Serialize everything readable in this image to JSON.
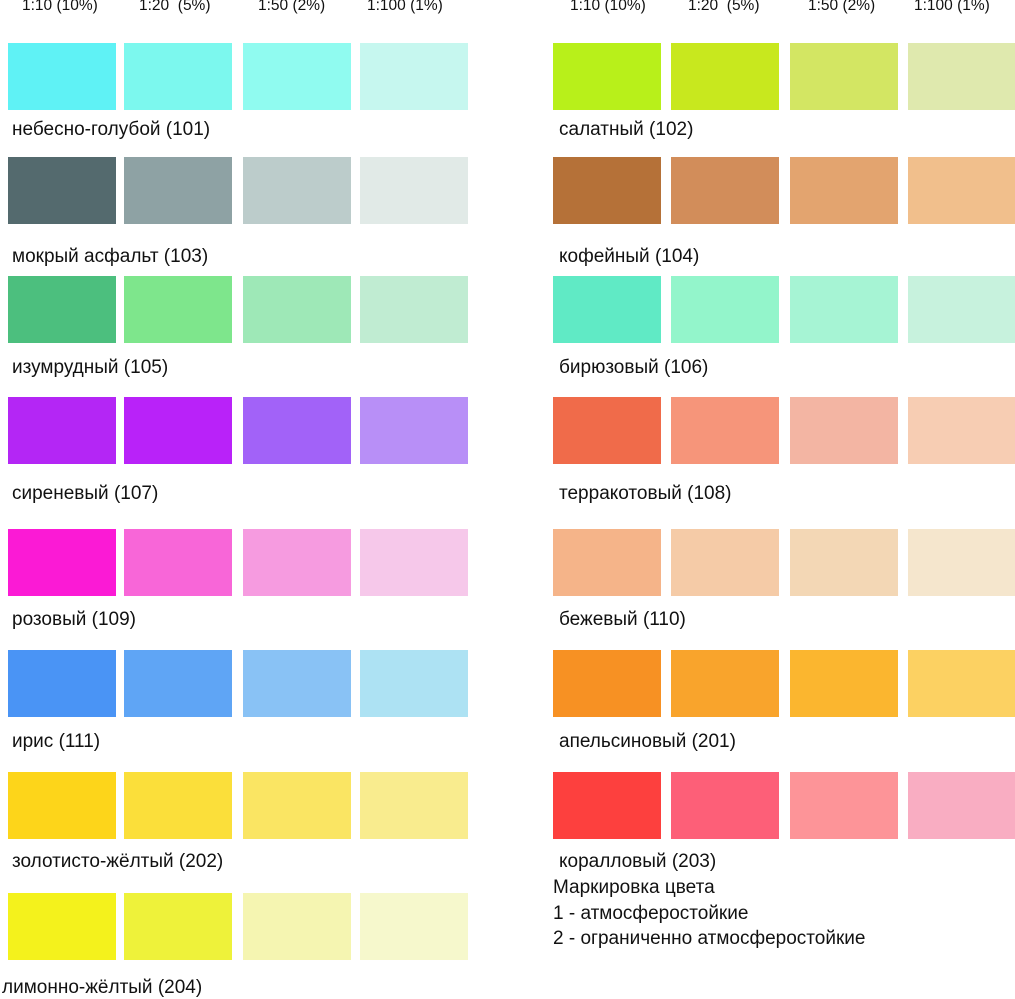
{
  "headers": [
    "1:10 (10%)",
    "1:20  (5%)",
    "1:50 (2%)",
    "1:100 (1%)"
  ],
  "left": [
    {
      "label": "небесно-голубой (101)",
      "colors": [
        "#5ff2f5",
        "#7cf8ee",
        "#90fbf0",
        "#c6f7ef"
      ]
    },
    {
      "label": "мокрый асфальт (103)",
      "colors": [
        "#546a6e",
        "#8ea2a4",
        "#bccccb",
        "#e1eae7"
      ]
    },
    {
      "label": "изумрудный (105)",
      "colors": [
        "#4cbf7e",
        "#7ee68c",
        "#9ee8b7",
        "#c0ecd2"
      ]
    },
    {
      "label": "сиреневый (107)",
      "colors": [
        "#b426f5",
        "#b922f9",
        "#a262f8",
        "#b88ff7"
      ]
    },
    {
      "label": "розовый (109)",
      "colors": [
        "#fb1ad5",
        "#f866d8",
        "#f69be0",
        "#f6c8ea"
      ]
    },
    {
      "label": "ирис (111)",
      "colors": [
        "#4a94f5",
        "#5fa5f5",
        "#89c2f5",
        "#ade2f3"
      ]
    },
    {
      "label": "золотисто-жёлтый (202)",
      "colors": [
        "#fdd51a",
        "#fbdf3a",
        "#fae563",
        "#f9ec8e"
      ]
    },
    {
      "label": "лимонно-жёлтый (204)",
      "colors": [
        "#f4f21c",
        "#eef23a",
        "#f5f5b1",
        "#f6f8cc"
      ]
    }
  ],
  "right": [
    {
      "label": "салатный (102)",
      "colors": [
        "#b8f01a",
        "#c8e81e",
        "#d3e663",
        "#dfe9ae"
      ]
    },
    {
      "label": "кофейный (104)",
      "colors": [
        "#b57138",
        "#d28d5a",
        "#e3a46f",
        "#f1bf8c"
      ]
    },
    {
      "label": "бирюзовый (106)",
      "colors": [
        "#60eac5",
        "#93f5cb",
        "#a6f4d4",
        "#c7f2dd"
      ]
    },
    {
      "label": "терракотовый (108)",
      "colors": [
        "#f06b4a",
        "#f6957a",
        "#f3b5a3",
        "#f7cdb3"
      ]
    },
    {
      "label": "бежевый (110)",
      "colors": [
        "#f5b489",
        "#f5cba7",
        "#f3d7b5",
        "#f5e6cd"
      ]
    },
    {
      "label": "апельсиновый (201)",
      "colors": [
        "#f79123",
        "#f9a42c",
        "#fbb62f",
        "#fcd162"
      ]
    },
    {
      "label": "коралловый (203)",
      "colors": [
        "#fd403e",
        "#fd5f78",
        "#fd9498",
        "#f9adc2"
      ]
    }
  ],
  "legend": {
    "title": "Маркировка цвета",
    "items": [
      "1 - атмосферостойкие",
      "2 - ограниченно атмосферостойкие"
    ]
  }
}
